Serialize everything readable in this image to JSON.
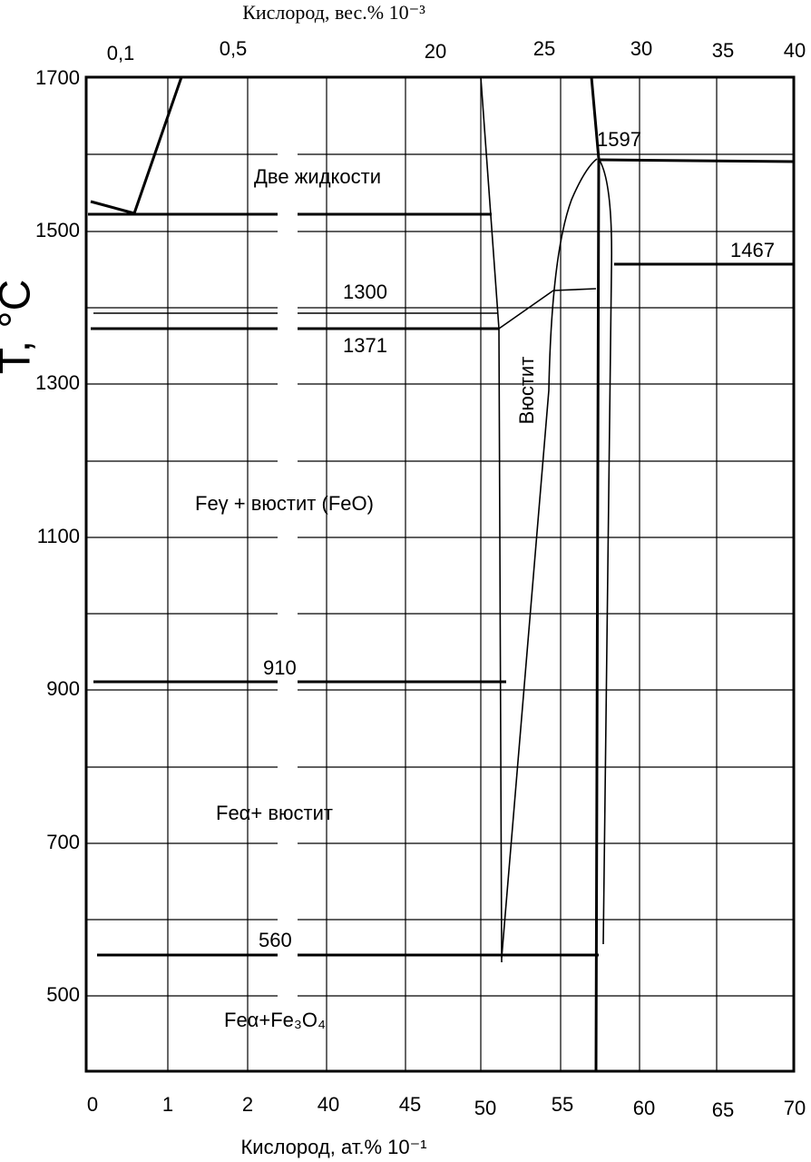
{
  "axes": {
    "y_label": "T, °C",
    "top_label": "Кислород, вес.% 10⁻³",
    "bottom_label": "Кислород, ат.% 10⁻¹",
    "y_ticks": [
      "1700",
      "1500",
      "1300",
      "1100",
      "900",
      "700",
      "500"
    ],
    "top_ticks": [
      "0,1",
      "0,5",
      "20",
      "25",
      "30",
      "35",
      "40"
    ],
    "bottom_ticks": [
      "0",
      "1",
      "2",
      "40",
      "45",
      "50",
      "55",
      "60",
      "65",
      "70"
    ]
  },
  "annotations": {
    "two_liquids": "Две жидкости",
    "t1300": "1300",
    "t1371": "1371",
    "wustite": "Вюстит",
    "fe_gamma": "Feγ + вюстит (FeO)",
    "t910": "910",
    "fe_alpha": "Feα+ вюстит",
    "t560": "560",
    "fe_magnetite": "Feα+Fe₃O₄",
    "t1597": "1597",
    "t1467": "1467"
  }
}
